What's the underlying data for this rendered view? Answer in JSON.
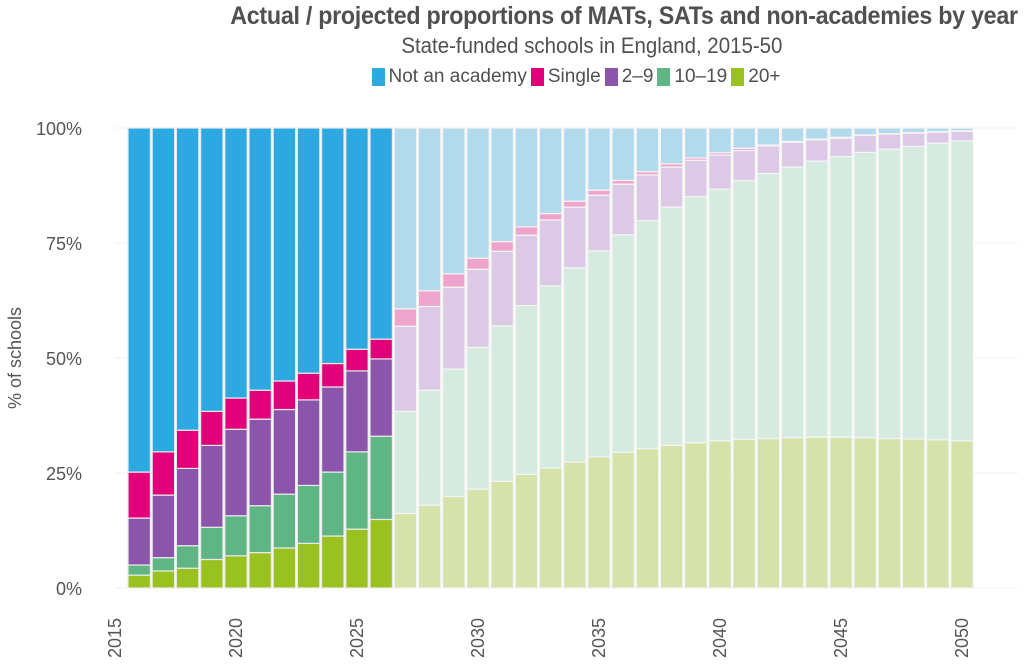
{
  "chart_data": {
    "type": "bar",
    "stacked": true,
    "percent_stacked": true,
    "title": "Actual / projected proportions of MATs, SATs and non-academies by year",
    "subtitle": "State-funded schools in England, 2015-50",
    "xlabel": "",
    "ylabel": "% of schools",
    "ylim": [
      0,
      100
    ],
    "yticks": [
      0,
      25,
      50,
      75,
      100
    ],
    "ytick_labels": [
      "0%",
      "25%",
      "50%",
      "75%",
      "100%"
    ],
    "xticks": [
      2015,
      2020,
      2025,
      2030,
      2035,
      2040,
      2045,
      2050
    ],
    "xtick_labels": [
      "2015",
      "2020",
      "2025",
      "2030",
      "2035",
      "2040",
      "2045",
      "2050"
    ],
    "xlim": [
      2015,
      2052
    ],
    "grid": "horizontal",
    "legend_position": "top",
    "projected_from": 2027,
    "projected_style": "faded",
    "x": [
      2016,
      2017,
      2018,
      2019,
      2020,
      2021,
      2022,
      2023,
      2024,
      2025,
      2026,
      2027,
      2028,
      2029,
      2030,
      2031,
      2032,
      2033,
      2034,
      2035,
      2036,
      2037,
      2038,
      2039,
      2040,
      2041,
      2042,
      2043,
      2044,
      2045,
      2046,
      2047,
      2048,
      2049,
      2050
    ],
    "series": [
      {
        "name": "20+",
        "color": "#99C220",
        "faded_color": "#D5E2AA",
        "values": [
          2.8,
          3.7,
          4.3,
          6.2,
          7.0,
          7.7,
          8.7,
          9.7,
          11.3,
          12.8,
          14.9,
          16.2,
          18.0,
          19.9,
          21.5,
          23.2,
          24.7,
          26.1,
          27.4,
          28.5,
          29.5,
          30.3,
          31.0,
          31.6,
          32.0,
          32.3,
          32.5,
          32.7,
          32.8,
          32.8,
          32.7,
          32.5,
          32.4,
          32.2,
          32.0
        ]
      },
      {
        "name": "10–19",
        "color": "#5FB583",
        "faded_color": "#D6EBDF",
        "values": [
          2.2,
          2.9,
          4.9,
          7.0,
          8.7,
          10.2,
          11.7,
          12.6,
          13.9,
          16.8,
          18.1,
          22.2,
          25.0,
          27.7,
          30.8,
          33.8,
          36.7,
          39.6,
          42.2,
          44.8,
          47.3,
          49.6,
          51.8,
          53.5,
          54.7,
          56.3,
          57.6,
          58.8,
          60.0,
          61.0,
          62.0,
          62.9,
          63.6,
          64.5,
          65.2
        ]
      },
      {
        "name": "2–9",
        "color": "#8A55AB",
        "faded_color": "#DCC9E5",
        "values": [
          10.2,
          13.6,
          16.8,
          17.8,
          18.8,
          18.8,
          18.4,
          18.6,
          18.5,
          17.6,
          16.8,
          18.5,
          18.2,
          17.8,
          17.0,
          16.2,
          15.3,
          14.3,
          13.2,
          12.1,
          11.0,
          9.9,
          8.7,
          7.9,
          7.4,
          6.5,
          6.0,
          5.4,
          4.6,
          4.0,
          3.7,
          3.3,
          2.9,
          2.4,
          2.1
        ]
      },
      {
        "name": "Single",
        "color": "#E2007A",
        "faded_color": "#EFA4CB",
        "values": [
          10.0,
          9.4,
          8.3,
          7.4,
          6.8,
          6.3,
          6.2,
          5.8,
          5.1,
          4.7,
          4.3,
          3.8,
          3.4,
          2.9,
          2.4,
          2.1,
          1.8,
          1.4,
          1.3,
          1.1,
          0.8,
          0.7,
          0.7,
          0.5,
          0.5,
          0.5,
          0.2,
          0.2,
          0.2,
          0.2,
          0.1,
          0.1,
          0.1,
          0.1,
          0.1
        ]
      },
      {
        "name": "Not an academy",
        "color": "#2EA8E0",
        "faded_color": "#B3DAEC",
        "values": [
          74.8,
          70.4,
          65.7,
          61.6,
          58.7,
          57.0,
          55.0,
          53.3,
          51.2,
          48.1,
          45.9,
          39.3,
          35.4,
          31.7,
          28.3,
          24.7,
          21.5,
          18.6,
          15.9,
          13.5,
          11.4,
          9.5,
          7.8,
          6.5,
          5.4,
          4.4,
          3.7,
          2.9,
          2.4,
          2.0,
          1.5,
          1.2,
          1.0,
          0.8,
          0.6
        ]
      }
    ],
    "legend": [
      {
        "label": "Not an academy",
        "color": "#2EA8E0"
      },
      {
        "label": "Single",
        "color": "#E2007A"
      },
      {
        "label": "2–9",
        "color": "#8A55AB"
      },
      {
        "label": "10–19",
        "color": "#5FB583"
      },
      {
        "label": "20+",
        "color": "#99C220"
      }
    ]
  }
}
